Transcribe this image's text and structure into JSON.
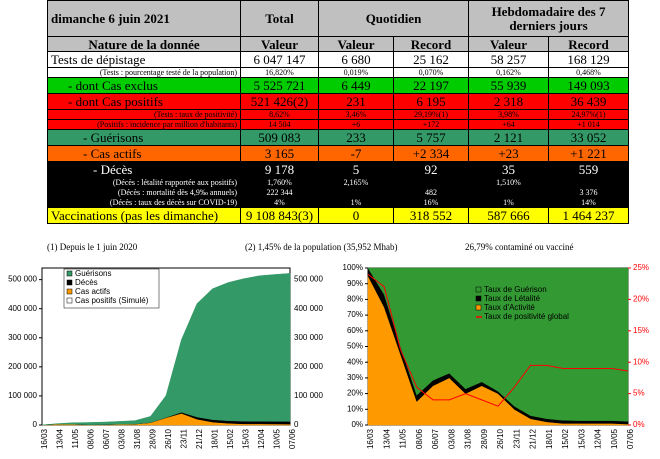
{
  "header": {
    "date": "dimanche 6 juin 2021",
    "groups": [
      "Total",
      "Quotidien",
      "Hebdomadaire des 7 derniers jours"
    ],
    "columns": [
      "Nature de la donnée",
      "Valeur",
      "Valeur",
      "Record",
      "Valeur",
      "Record"
    ]
  },
  "table": {
    "rows": [
      {
        "label": "Tests de dépistage",
        "color": "#ffffff",
        "cells": [
          "6 047 147",
          "6 680",
          "25 162",
          "58 257",
          "168 129"
        ]
      },
      {
        "label": "(Tests : pourcentage testé de la population)",
        "color": "#ffffff",
        "cells": [
          "16,820%",
          "0,019%",
          "0,070%",
          "0,162%",
          "0,468%"
        ]
      },
      {
        "label": "- dont Cas exclus",
        "color": "#00cc00",
        "cells": [
          "5 525 721",
          "6 449",
          "22 197",
          "55 939",
          "149 093"
        ]
      },
      {
        "label": "- dont Cas positifs",
        "color": "#ff0000",
        "cells": [
          "521 426(2)",
          "231",
          "6 195",
          "2 318",
          "36 439"
        ]
      },
      {
        "label": "(Tests : taux de positivité)",
        "color": "#ff0000",
        "cells": [
          "8,62%",
          "3,46%",
          "29,19%(1)",
          "3,98%",
          "24,97%(1)"
        ]
      },
      {
        "label": "(Positifs : incidence par million d'habitants)",
        "color": "#ff0000",
        "cells": [
          "14 504",
          "+6",
          "+172",
          "+64",
          "+1 014"
        ]
      },
      {
        "label": "- Guérisons",
        "color": "#339966",
        "cells": [
          "509 083",
          "233",
          "5 757",
          "2 121",
          "33 052"
        ]
      },
      {
        "label": "- Cas actifs",
        "color": "#ff6600",
        "cells": [
          "3 165",
          "-7",
          "+2 334",
          "+23",
          "+1 221"
        ]
      },
      {
        "label": "- Décès",
        "color": "#000000",
        "cells": [
          "9 178",
          "5",
          "92",
          "35",
          "559"
        ]
      },
      {
        "label": "(Décès : létalité rapportée aux positifs)",
        "color": "#000000",
        "cells": [
          "1,760%",
          "2,165%",
          null,
          "1,510%",
          null
        ]
      },
      {
        "label": "(Décès : mortalité dès 4,9‰ annuels)",
        "color": "#000000",
        "cells": [
          "222 344",
          null,
          "482",
          null,
          "3 376"
        ]
      },
      {
        "label": "(Décès : taux des décès sur COVID-19)",
        "color": "#000000",
        "cells": [
          "4%",
          "1%",
          "16%",
          "1%",
          "14%"
        ]
      },
      {
        "label": "Vaccinations (pas les dimanche)",
        "color": "#ffff00",
        "cells": [
          "9 108 843(3)",
          "0",
          "318 552",
          "587 666",
          "1 464 237"
        ]
      }
    ]
  },
  "notes": [
    "(1) Depuis le 1 juin 2020",
    "(2) 1,45% de la population (35,952 Mhab)",
    "26,79% contaminé ou vacciné"
  ],
  "chart_data": [
    {
      "type": "area",
      "categories": [
        "16/03",
        "13/04",
        "11/05",
        "08/06",
        "06/07",
        "03/08",
        "31/08",
        "28/09",
        "26/10",
        "23/11",
        "21/12",
        "18/01",
        "15/02",
        "15/03",
        "12/04",
        "10/05",
        "07/06"
      ],
      "series": [
        {
          "name": "Guérisons",
          "color": "#339966",
          "values": [
            50,
            1500,
            5000,
            7500,
            8500,
            9500,
            11500,
            21000,
            75000,
            250000,
            390000,
            450000,
            475000,
            490000,
            500000,
            505000,
            509083
          ]
        },
        {
          "name": "Décès",
          "color": "#000000",
          "values": [
            10,
            200,
            300,
            330,
            350,
            380,
            420,
            600,
            1200,
            4000,
            7500,
            8500,
            8800,
            9000,
            9050,
            9100,
            9178
          ]
        },
        {
          "name": "Cas actifs",
          "color": "#ff9900",
          "values": [
            100,
            3000,
            2500,
            800,
            1200,
            2500,
            3000,
            8000,
            25000,
            40000,
            20000,
            10000,
            6000,
            4000,
            4000,
            3500,
            3165
          ]
        },
        {
          "name": "Cas positifs (Simulé)",
          "color": "#ffffff",
          "values": [
            null,
            null,
            null,
            null,
            null,
            null,
            null,
            null,
            null,
            null,
            null,
            null,
            null,
            null,
            null,
            null,
            null
          ]
        }
      ],
      "ylim": [
        0,
        540000
      ],
      "yticks": [
        0,
        {
          "value": 100000,
          "label": "100 000"
        },
        {
          "value": 200000,
          "label": "200 000"
        },
        {
          "value": 300000,
          "label": "300 000"
        },
        {
          "value": 400000,
          "label": "400 000"
        },
        {
          "value": 500000,
          "label": "500 000"
        }
      ],
      "mirror_y_labels": true,
      "grid": false,
      "legend": "upper left"
    },
    {
      "type": "area",
      "categories": [
        "16/03",
        "13/04",
        "11/05",
        "08/06",
        "06/07",
        "03/08",
        "31/08",
        "28/09",
        "26/10",
        "23/11",
        "21/12",
        "18/01",
        "15/02",
        "15/03",
        "12/04",
        "10/05",
        "07/06"
      ],
      "series": [
        {
          "name": "Taux de Guérison",
          "color": "#339933",
          "values": [
            0,
            17,
            50,
            81,
            71.5,
            67,
            77,
            72.5,
            78.5,
            88,
            94,
            96,
            97,
            97.2,
            97.2,
            97.2,
            97.6
          ]
        },
        {
          "name": "Taux de Létalité",
          "color": "#000000",
          "values": [
            5,
            8,
            5,
            4,
            3.5,
            3,
            3,
            2.5,
            1.5,
            2,
            2,
            2,
            2,
            1.8,
            1.8,
            1.8,
            1.76
          ]
        },
        {
          "name": "Taux d'Activité",
          "color": "#ff9900",
          "values": [
            95,
            75,
            45,
            15,
            25,
            30,
            20,
            25,
            20,
            10,
            4,
            2,
            1,
            1,
            1,
            1,
            0.6
          ]
        },
        {
          "name": "Taux de positivité global",
          "color": "#ff0000",
          "axis": "y2",
          "values": [
            24,
            22,
            12,
            6,
            4,
            4,
            5,
            4,
            3,
            6,
            9.5,
            9.5,
            9,
            9,
            9,
            9,
            8.6
          ]
        }
      ],
      "ylim": [
        0,
        100
      ],
      "yticks": [
        {
          "value": 0,
          "label": "0%"
        },
        {
          "value": 10,
          "label": "10%"
        },
        {
          "value": 20,
          "label": "20%"
        },
        {
          "value": 30,
          "label": "30%"
        },
        {
          "value": 40,
          "label": "40%"
        },
        {
          "value": 50,
          "label": "50%"
        },
        {
          "value": 60,
          "label": "60%"
        },
        {
          "value": 70,
          "label": "70%"
        },
        {
          "value": 80,
          "label": "80%"
        },
        {
          "value": 90,
          "label": "90%"
        },
        {
          "value": 100,
          "label": "100%"
        }
      ],
      "y2lim": [
        0,
        25
      ],
      "y2ticks": [
        {
          "value": 0,
          "label": "0%"
        },
        {
          "value": 5,
          "label": "5%"
        },
        {
          "value": 10,
          "label": "10%"
        },
        {
          "value": 15,
          "label": "15%"
        },
        {
          "value": 20,
          "label": "20%"
        },
        {
          "value": 25,
          "label": "25%"
        }
      ],
      "mirror_y_labels": false,
      "grid": false,
      "legend": "upper center"
    }
  ]
}
